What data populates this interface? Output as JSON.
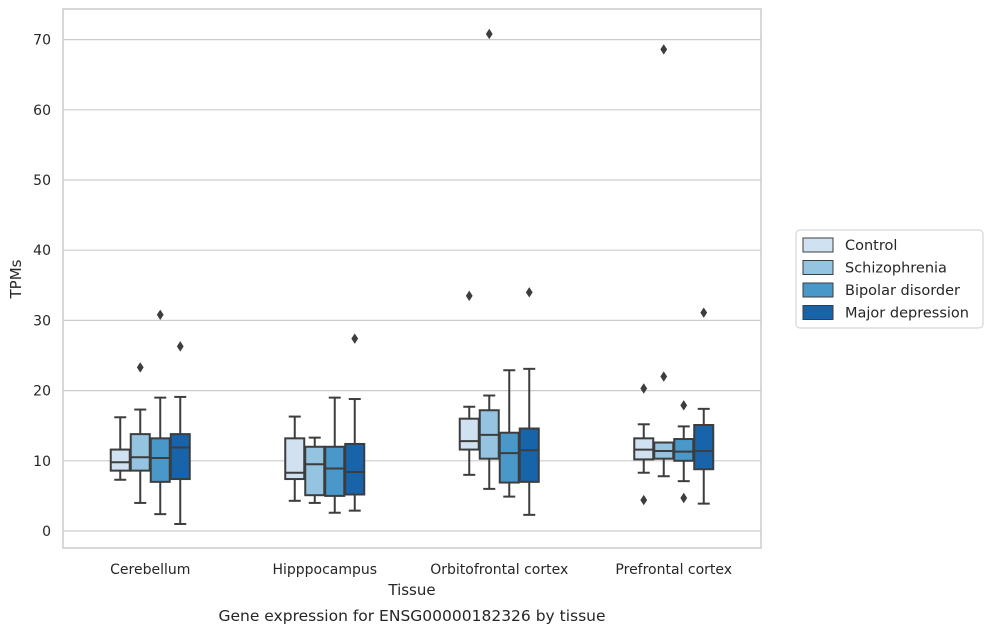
{
  "chart_data": {
    "type": "box",
    "title": "",
    "caption": "Gene expression for ENSG00000182326 by tissue",
    "xlabel": "Tissue",
    "ylabel": "TPMs",
    "ylim": [
      -2,
      74.5
    ],
    "yticks": [
      0,
      10,
      20,
      30,
      40,
      50,
      60,
      70
    ],
    "grid": true,
    "legend_position": "right",
    "categories": [
      "Cerebellum",
      "Hipppocampus",
      "Orbitofrontal cortex",
      "Prefrontal cortex"
    ],
    "series": [
      {
        "name": "Control",
        "color": "#d0e1f2",
        "boxes": [
          {
            "whislo": 7.3,
            "q1": 8.6,
            "med": 9.8,
            "q3": 11.6,
            "whishi": 16.2,
            "fliers": []
          },
          {
            "whislo": 4.3,
            "q1": 7.4,
            "med": 8.3,
            "q3": 13.2,
            "whishi": 16.3,
            "fliers": []
          },
          {
            "whislo": 8.0,
            "q1": 11.6,
            "med": 12.8,
            "q3": 16.0,
            "whishi": 17.7,
            "fliers": [
              33.5
            ]
          },
          {
            "whislo": 8.3,
            "q1": 10.2,
            "med": 11.6,
            "q3": 13.2,
            "whishi": 15.2,
            "fliers": [
              4.4,
              20.3
            ]
          }
        ]
      },
      {
        "name": "Schizophrenia",
        "color": "#94c4df",
        "boxes": [
          {
            "whislo": 4.0,
            "q1": 8.6,
            "med": 10.5,
            "q3": 13.8,
            "whishi": 17.3,
            "fliers": [
              23.3
            ]
          },
          {
            "whislo": 4.0,
            "q1": 5.1,
            "med": 9.5,
            "q3": 12.0,
            "whishi": 13.3,
            "fliers": []
          },
          {
            "whislo": 6.0,
            "q1": 10.3,
            "med": 13.7,
            "q3": 17.2,
            "whishi": 19.3,
            "fliers": [
              70.8
            ]
          },
          {
            "whislo": 7.8,
            "q1": 10.3,
            "med": 11.4,
            "q3": 12.6,
            "whishi": 12.6,
            "fliers": [
              22.0,
              68.6
            ]
          }
        ]
      },
      {
        "name": "Bipolar disorder",
        "color": "#4a98c9",
        "boxes": [
          {
            "whislo": 2.4,
            "q1": 7.0,
            "med": 10.4,
            "q3": 13.2,
            "whishi": 19.0,
            "fliers": [
              30.8
            ]
          },
          {
            "whislo": 2.6,
            "q1": 5.0,
            "med": 8.9,
            "q3": 12.0,
            "whishi": 19.0,
            "fliers": []
          },
          {
            "whislo": 4.9,
            "q1": 6.9,
            "med": 11.1,
            "q3": 14.0,
            "whishi": 22.9,
            "fliers": []
          },
          {
            "whislo": 7.1,
            "q1": 10.0,
            "med": 11.3,
            "q3": 13.1,
            "whishi": 14.9,
            "fliers": [
              4.7,
              17.9
            ]
          }
        ]
      },
      {
        "name": "Major depression",
        "color": "#1764ab",
        "boxes": [
          {
            "whislo": 1.0,
            "q1": 7.4,
            "med": 11.9,
            "q3": 13.8,
            "whishi": 19.1,
            "fliers": [
              26.3
            ]
          },
          {
            "whislo": 2.9,
            "q1": 5.2,
            "med": 8.4,
            "q3": 12.4,
            "whishi": 18.8,
            "fliers": [
              27.4
            ]
          },
          {
            "whislo": 2.3,
            "q1": 7.0,
            "med": 11.5,
            "q3": 14.6,
            "whishi": 23.1,
            "fliers": [
              34.0
            ]
          },
          {
            "whislo": 3.9,
            "q1": 8.8,
            "med": 11.4,
            "q3": 15.1,
            "whishi": 17.4,
            "fliers": [
              31.1
            ]
          }
        ]
      }
    ]
  }
}
